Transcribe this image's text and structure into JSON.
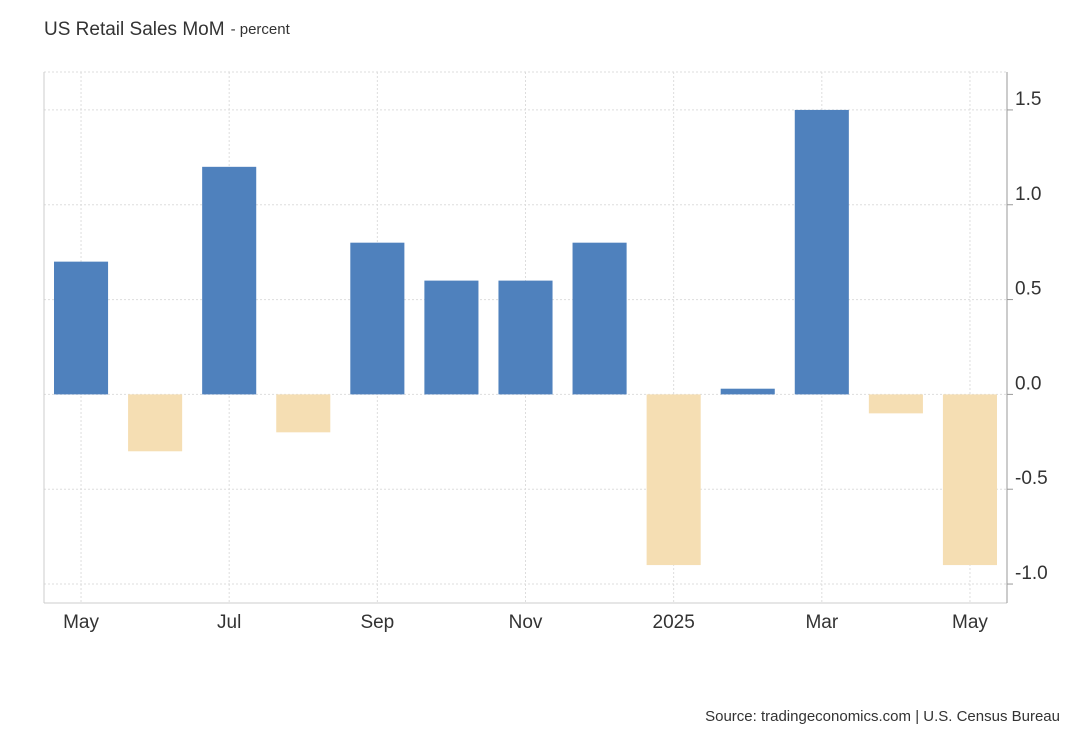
{
  "chart_data": {
    "type": "bar",
    "title": "US Retail Sales MoM",
    "subtitle": "- percent",
    "source": "Source: tradingeconomics.com | U.S. Census Bureau",
    "categories": [
      "May",
      null,
      "Jul",
      null,
      "Sep",
      null,
      "Nov",
      null,
      "2025",
      null,
      "Mar",
      null,
      "May"
    ],
    "values": [
      0.7,
      -0.3,
      1.2,
      -0.2,
      0.8,
      0.6,
      0.6,
      0.8,
      -0.9,
      0.03,
      1.5,
      -0.1,
      -0.9
    ],
    "color": "#4f81bd",
    "negative_color": "#f5deb3",
    "ylim": [
      -1.1,
      1.7
    ],
    "yticks": [
      1.5,
      {
        "value": 1,
        "label": "1.0"
      },
      0.5,
      {
        "value": 0,
        "label": "0.0"
      },
      -0.5,
      {
        "value": -1,
        "label": "-1.0"
      }
    ],
    "grid": true
  }
}
